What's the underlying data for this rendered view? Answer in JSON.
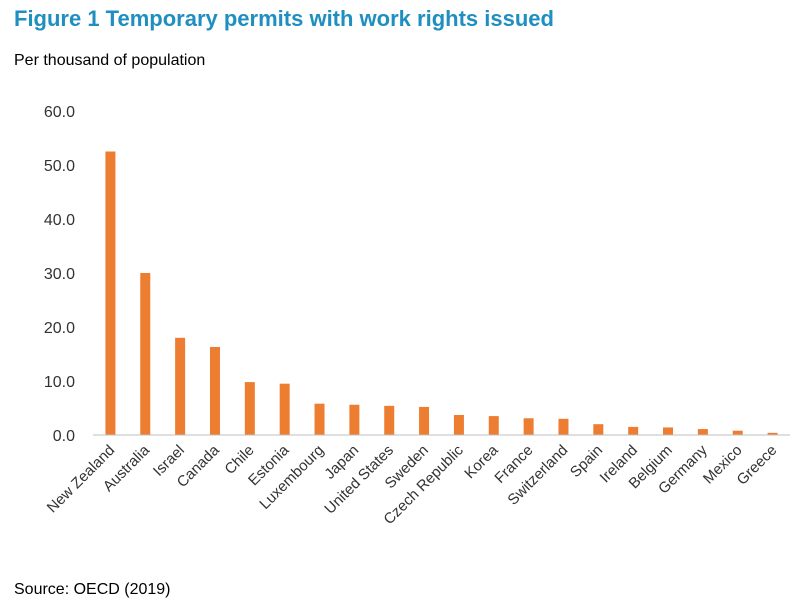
{
  "title": "Figure 1 Temporary permits with work rights issued",
  "subtitle": "Per thousand of population",
  "source": "Source: OECD (2019)",
  "colors": {
    "bar": "#ed7d31",
    "title": "#1f8fc0",
    "axis": "#bfbfbf"
  },
  "chart_data": {
    "type": "bar",
    "title": "Figure 1 Temporary permits with work rights issued",
    "ylabel": "Per thousand of population",
    "xlabel": "",
    "ylim": [
      0,
      60
    ],
    "yticks": [
      0,
      10,
      20,
      30,
      40,
      50,
      60
    ],
    "ytick_labels": [
      "0.0",
      "10.0",
      "20.0",
      "30.0",
      "40.0",
      "50.0",
      "60.0"
    ],
    "grid": false,
    "categories": [
      "New Zealand",
      "Australia",
      "Israel",
      "Canada",
      "Chile",
      "Estonia",
      "Luxembourg",
      "Japan",
      "United States",
      "Sweden",
      "Czech Republic",
      "Korea",
      "France",
      "Switzerland",
      "Spain",
      "Ireland",
      "Belgium",
      "Germany",
      "Mexico",
      "Greece"
    ],
    "values": [
      52.5,
      30.0,
      18.0,
      16.3,
      9.8,
      9.5,
      5.8,
      5.6,
      5.4,
      5.2,
      3.7,
      3.5,
      3.1,
      3.0,
      2.0,
      1.5,
      1.4,
      1.1,
      0.8,
      0.4
    ]
  }
}
